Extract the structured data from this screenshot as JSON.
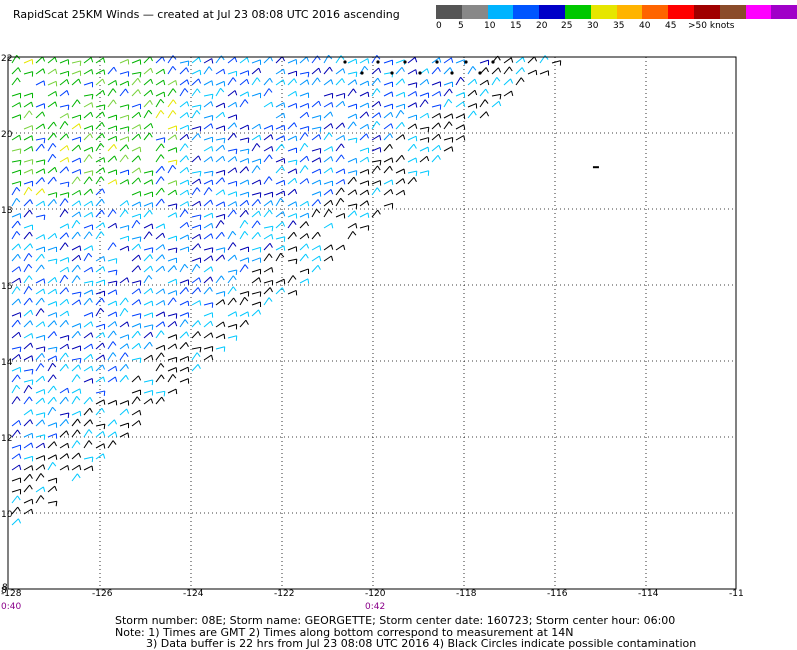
{
  "title": "RapidScat 25KM Winds — created at Jul 23 08:08 UTC 2016 ascending",
  "legend": {
    "colors": [
      "#555555",
      "#888888",
      "#00b4ff",
      "#0055ff",
      "#0000c8",
      "#00c800",
      "#e6e600",
      "#ffb400",
      "#ff6400",
      "#ff0000",
      "#a00000",
      "#8a4b2a",
      "#ff00ff",
      "#a000c8"
    ],
    "labels": [
      "0",
      "5",
      "10",
      "15",
      "20",
      "25",
      "30",
      "35",
      "40",
      "45",
      ">50 knots"
    ],
    "label_positions": [
      0,
      0.5,
      0.6,
      0.45,
      0.45,
      0.4,
      0.4,
      0.35,
      0.35,
      0.3,
      0.0
    ]
  },
  "chart_data": {
    "type": "wind-barb map",
    "x_range": [
      -128,
      -112
    ],
    "y_range": [
      8,
      22
    ],
    "x_ticks": [
      "-128",
      "-126",
      "-124",
      "-122",
      "-120",
      "-118",
      "-116",
      "-114",
      "-11"
    ],
    "y_ticks": [
      "22",
      "20",
      "18",
      "16",
      "14",
      "12",
      "10",
      "8"
    ],
    "bottom_left_label": "8",
    "grid": true,
    "time_labels": [
      {
        "text": "0:40",
        "lon": -128
      },
      {
        "text": "0:42",
        "lon": -120
      }
    ],
    "storm_marker": {
      "lon": -115.1,
      "lat": 19.1
    }
  },
  "footer": {
    "line1": "Storm number: 08E;  Storm name: GEORGETTE;  Storm center date: 160723;  Storm center hour: 06:00",
    "line2": "Note: 1) Times are GMT  2) Times along bottom correspond to measurement at 14N",
    "line3": "3) Data buffer is 22 hrs from Jul 23 08:08 UTC 2016   4) Black Circles indicate possible contamination"
  }
}
